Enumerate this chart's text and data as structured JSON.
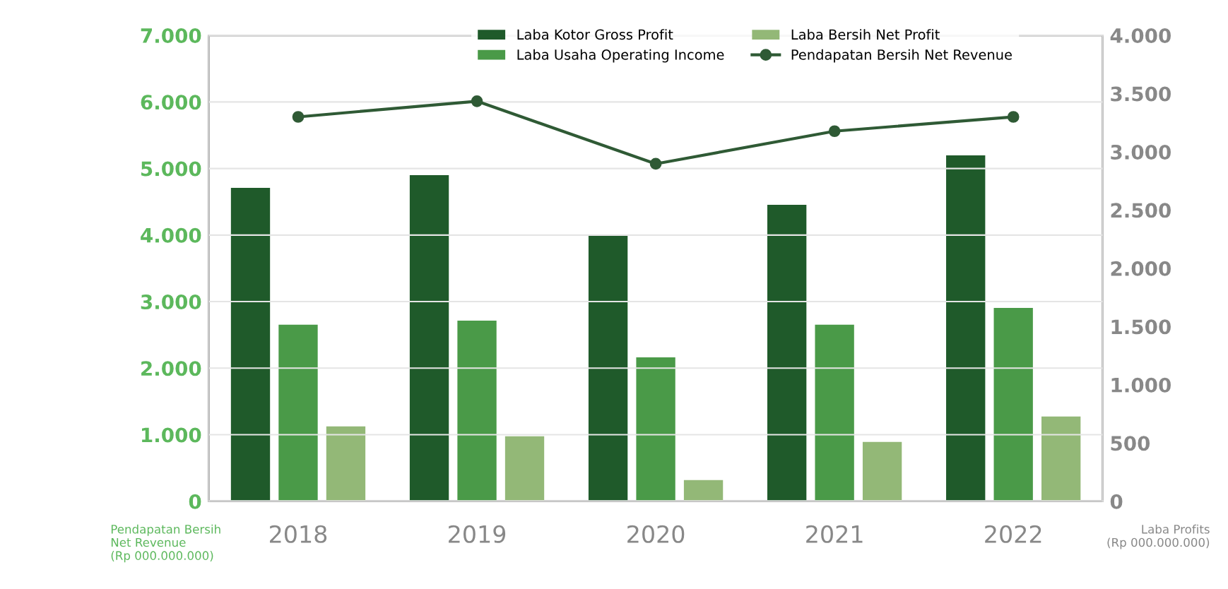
{
  "chart_data": {
    "type": "bar",
    "categories": [
      "2018",
      "2019",
      "2020",
      "2021",
      "2022"
    ],
    "series": [
      {
        "name": "Laba Kotor Gross Profit",
        "color": "#1f5a2a",
        "axis": "y2",
        "values": [
          2690,
          2800,
          2280,
          2545,
          2970
        ]
      },
      {
        "name": "Laba Usaha Operating Income",
        "color": "#4a9a48",
        "axis": "y2",
        "values": [
          1515,
          1550,
          1236,
          1515,
          1660
        ]
      },
      {
        "name": "Laba Bersih Net Profit",
        "color": "#93b877",
        "axis": "y2",
        "values": [
          642,
          558,
          182,
          509,
          727
        ]
      },
      {
        "name": "Pendapatan Bersih Net Revenue",
        "color": "#2f5a35",
        "type": "line",
        "axis": "y",
        "marker": "circle",
        "values": [
          5775,
          6010,
          5070,
          5560,
          5775
        ]
      }
    ],
    "ylabel": "Pendapatan Bersih\nNet Revenue\n(Rp 000.000.000)",
    "y2label": "Laba Profits\n(Rp 000.000.000)",
    "ylim": [
      0,
      7000
    ],
    "yticks": [
      0,
      {
        "value": 1000,
        "label": "1.000"
      },
      {
        "value": 2000,
        "label": "2.000"
      },
      {
        "value": 3000,
        "label": "3.000"
      },
      {
        "value": 4000,
        "label": "4.000"
      },
      {
        "value": 5000,
        "label": "5.000"
      },
      {
        "value": 6000,
        "label": "6.000"
      },
      {
        "value": 7000,
        "label": "7.000"
      }
    ],
    "y2lim": [
      0,
      4000
    ],
    "y2ticks": [
      0,
      500,
      {
        "value": 1000,
        "label": "1.000"
      },
      {
        "value": 1500,
        "label": "1.500"
      },
      {
        "value": 2000,
        "label": "2.000"
      },
      {
        "value": 2500,
        "label": "2.500"
      },
      {
        "value": 3000,
        "label": "3.000"
      },
      {
        "value": 3500,
        "label": "3.500"
      },
      {
        "value": 4000,
        "label": "4.000"
      }
    ],
    "grid": "y",
    "legend": "top"
  }
}
